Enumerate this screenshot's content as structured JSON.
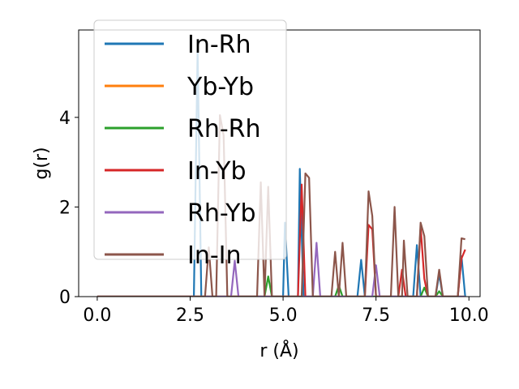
{
  "chart_data": {
    "type": "line",
    "title": "",
    "xlabel": "r (Å)",
    "ylabel": "g(r)",
    "xlim": [
      -0.5,
      10.3
    ],
    "ylim": [
      0,
      5.95
    ],
    "xticks": [
      0.0,
      2.5,
      5.0,
      7.5,
      10.0
    ],
    "xtick_labels": [
      "0.0",
      "2.5",
      "5.0",
      "7.5",
      "10.0"
    ],
    "yticks": [
      0,
      2,
      4
    ],
    "ytick_labels": [
      "0",
      "2",
      "4"
    ],
    "grid": false,
    "legend_position": "top-left",
    "series": [
      {
        "name": "In-Rh",
        "color": "#1f77b4",
        "points": [
          [
            0,
            0
          ],
          [
            2.6,
            0
          ],
          [
            2.7,
            5.5
          ],
          [
            2.8,
            0
          ],
          [
            5.0,
            0
          ],
          [
            5.05,
            1.65
          ],
          [
            5.15,
            0
          ],
          [
            5.4,
            0
          ],
          [
            5.45,
            2.85
          ],
          [
            5.55,
            0
          ],
          [
            7.0,
            0
          ],
          [
            7.1,
            0.82
          ],
          [
            7.2,
            0
          ],
          [
            8.5,
            0
          ],
          [
            8.6,
            1.15
          ],
          [
            8.7,
            0
          ],
          [
            9.1,
            0
          ],
          [
            9.2,
            0.5
          ],
          [
            9.3,
            0
          ],
          [
            9.7,
            0
          ],
          [
            9.8,
            0.9
          ],
          [
            9.9,
            0
          ]
        ]
      },
      {
        "name": "Yb-Yb",
        "color": "#ff7f0e",
        "points": [
          [
            0,
            0
          ],
          [
            9.9,
            0
          ]
        ]
      },
      {
        "name": "Rh-Rh",
        "color": "#2ca02c",
        "points": [
          [
            0,
            0
          ],
          [
            4.5,
            0
          ],
          [
            4.6,
            0.45
          ],
          [
            4.7,
            0
          ],
          [
            6.4,
            0
          ],
          [
            6.5,
            0.25
          ],
          [
            6.6,
            0
          ],
          [
            8.7,
            0
          ],
          [
            8.8,
            0.2
          ],
          [
            8.9,
            0
          ],
          [
            9.1,
            0
          ],
          [
            9.2,
            0.12
          ],
          [
            9.3,
            0
          ],
          [
            9.9,
            0
          ]
        ]
      },
      {
        "name": "In-Yb",
        "color": "#d62728",
        "points": [
          [
            0,
            0
          ],
          [
            5.4,
            0
          ],
          [
            5.5,
            2.5
          ],
          [
            5.6,
            0
          ],
          [
            7.2,
            0
          ],
          [
            7.3,
            1.6
          ],
          [
            7.4,
            1.5
          ],
          [
            7.5,
            0
          ],
          [
            8.1,
            0
          ],
          [
            8.2,
            0.6
          ],
          [
            8.3,
            0
          ],
          [
            8.6,
            0
          ],
          [
            8.7,
            1.55
          ],
          [
            8.8,
            0.4
          ],
          [
            8.9,
            0
          ],
          [
            9.7,
            0
          ],
          [
            9.8,
            0.85
          ],
          [
            9.9,
            1.05
          ]
        ]
      },
      {
        "name": "Rh-Yb",
        "color": "#9467bd",
        "points": [
          [
            0,
            0
          ],
          [
            3.6,
            0
          ],
          [
            3.7,
            0.8
          ],
          [
            3.8,
            0
          ],
          [
            5.8,
            0
          ],
          [
            5.9,
            1.2
          ],
          [
            6.0,
            0
          ],
          [
            7.4,
            0
          ],
          [
            7.5,
            0.7
          ],
          [
            7.6,
            0
          ],
          [
            9.9,
            0
          ]
        ]
      },
      {
        "name": "In-In",
        "color": "#8c564b",
        "points": [
          [
            0,
            0
          ],
          [
            2.9,
            0
          ],
          [
            3.0,
            1.1
          ],
          [
            3.1,
            0
          ],
          [
            3.2,
            0
          ],
          [
            3.3,
            4.05
          ],
          [
            3.4,
            3.6
          ],
          [
            3.5,
            0
          ],
          [
            4.3,
            0
          ],
          [
            4.4,
            2.55
          ],
          [
            4.5,
            0
          ],
          [
            4.6,
            2.45
          ],
          [
            4.7,
            0
          ],
          [
            5.5,
            0
          ],
          [
            5.6,
            2.75
          ],
          [
            5.7,
            2.65
          ],
          [
            5.8,
            0
          ],
          [
            6.3,
            0
          ],
          [
            6.4,
            1.0
          ],
          [
            6.5,
            0
          ],
          [
            6.6,
            1.2
          ],
          [
            6.7,
            0
          ],
          [
            7.2,
            0
          ],
          [
            7.3,
            2.35
          ],
          [
            7.4,
            1.8
          ],
          [
            7.5,
            0
          ],
          [
            7.9,
            0
          ],
          [
            8.0,
            2.0
          ],
          [
            8.1,
            0
          ],
          [
            8.2,
            0
          ],
          [
            8.25,
            1.25
          ],
          [
            8.35,
            0
          ],
          [
            8.6,
            0
          ],
          [
            8.7,
            1.65
          ],
          [
            8.8,
            1.35
          ],
          [
            8.9,
            0
          ],
          [
            9.1,
            0
          ],
          [
            9.2,
            0.6
          ],
          [
            9.3,
            0
          ],
          [
            9.7,
            0
          ],
          [
            9.8,
            1.3
          ],
          [
            9.9,
            1.28
          ]
        ]
      }
    ]
  }
}
